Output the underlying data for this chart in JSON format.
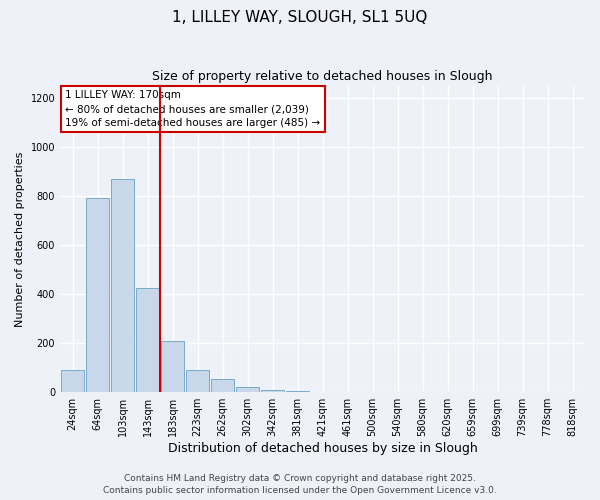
{
  "title": "1, LILLEY WAY, SLOUGH, SL1 5UQ",
  "subtitle": "Size of property relative to detached houses in Slough",
  "xlabel": "Distribution of detached houses by size in Slough",
  "ylabel": "Number of detached properties",
  "categories": [
    "24sqm",
    "64sqm",
    "103sqm",
    "143sqm",
    "183sqm",
    "223sqm",
    "262sqm",
    "302sqm",
    "342sqm",
    "381sqm",
    "421sqm",
    "461sqm",
    "500sqm",
    "540sqm",
    "580sqm",
    "620sqm",
    "659sqm",
    "699sqm",
    "739sqm",
    "778sqm",
    "818sqm"
  ],
  "values": [
    90,
    790,
    870,
    425,
    210,
    90,
    55,
    20,
    10,
    5,
    0,
    2,
    0,
    0,
    0,
    2,
    0,
    2,
    0,
    0,
    2
  ],
  "bar_color": "#c8d8ea",
  "bar_edge_color": "#7aaac8",
  "vline_color": "#cc0000",
  "vline_pos": 3.5,
  "ylim": [
    0,
    1250
  ],
  "yticks": [
    0,
    200,
    400,
    600,
    800,
    1000,
    1200
  ],
  "annotation_title": "1 LILLEY WAY: 170sqm",
  "annotation_line1": "← 80% of detached houses are smaller (2,039)",
  "annotation_line2": "19% of semi-detached houses are larger (485) →",
  "annotation_box_color": "#cc0000",
  "background_color": "#eef2f8",
  "grid_color": "#ffffff",
  "footer_line1": "Contains HM Land Registry data © Crown copyright and database right 2025.",
  "footer_line2": "Contains public sector information licensed under the Open Government Licence v3.0.",
  "title_fontsize": 11,
  "subtitle_fontsize": 9,
  "annotation_fontsize": 7.5,
  "ylabel_fontsize": 8,
  "xlabel_fontsize": 9,
  "footer_fontsize": 6.5,
  "tick_fontsize": 7
}
